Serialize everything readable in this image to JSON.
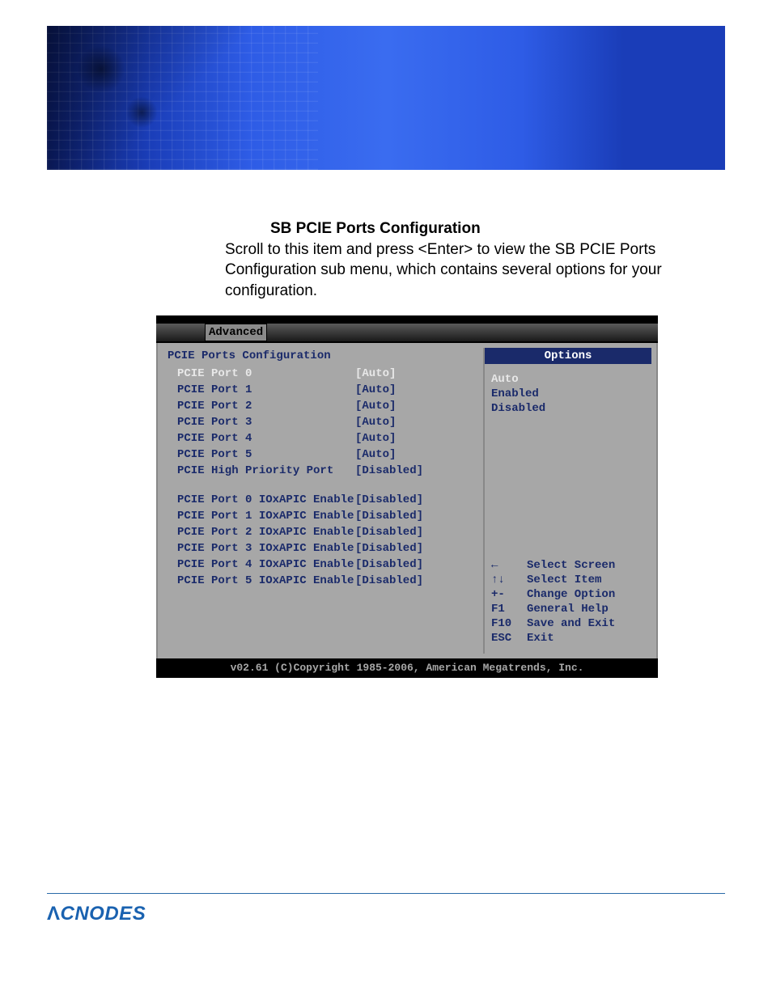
{
  "banner": {
    "gradient_from": "#0a1a5e",
    "gradient_to": "#3a6cf0"
  },
  "doc": {
    "title": "SB PCIE Ports Configuration",
    "body": "Scroll to this item and press <Enter> to view the SB PCIE Ports Configuration sub menu, which contains several options for your configuration."
  },
  "bios": {
    "tab": "Advanced",
    "section_title": "PCIE Ports Configuration",
    "selected_row_index": 0,
    "rows_group1": [
      {
        "label": "PCIE Port 0",
        "value": "[Auto]"
      },
      {
        "label": "PCIE Port 1",
        "value": "[Auto]"
      },
      {
        "label": "PCIE Port 2",
        "value": "[Auto]"
      },
      {
        "label": "PCIE Port 3",
        "value": "[Auto]"
      },
      {
        "label": "PCIE Port 4",
        "value": "[Auto]"
      },
      {
        "label": "PCIE Port 5",
        "value": "[Auto]"
      },
      {
        "label": "PCIE High Priority Port",
        "value": "[Disabled]"
      }
    ],
    "rows_group2": [
      {
        "label": "PCIE Port 0 IOxAPIC Enable",
        "value": "[Disabled]"
      },
      {
        "label": "PCIE Port 1 IOxAPIC Enable",
        "value": "[Disabled]"
      },
      {
        "label": "PCIE Port 2 IOxAPIC Enable",
        "value": "[Disabled]"
      },
      {
        "label": "PCIE Port 3 IOxAPIC Enable",
        "value": "[Disabled]"
      },
      {
        "label": "PCIE Port 4 IOxAPIC Enable",
        "value": "[Disabled]"
      },
      {
        "label": "PCIE Port 5 IOxAPIC Enable",
        "value": "[Disabled]"
      }
    ],
    "options_header": "Options",
    "options": [
      "Auto",
      "Enabled",
      "Disabled"
    ],
    "selected_option_index": 0,
    "help": [
      {
        "key": "←",
        "action": "Select Screen"
      },
      {
        "key": "↑↓",
        "action": "Select Item"
      },
      {
        "key": "+-",
        "action": "Change Option"
      },
      {
        "key": "F1",
        "action": "General Help"
      },
      {
        "key": "F10",
        "action": "Save and Exit"
      },
      {
        "key": "ESC",
        "action": "Exit"
      }
    ],
    "footer": "v02.61 (C)Copyright 1985-2006, American Megatrends, Inc."
  },
  "footer": {
    "brand": "CNODES",
    "brand_prefix": "Λ",
    "rule_color": "#2a6aa8",
    "brand_color": "#1a62b0"
  }
}
